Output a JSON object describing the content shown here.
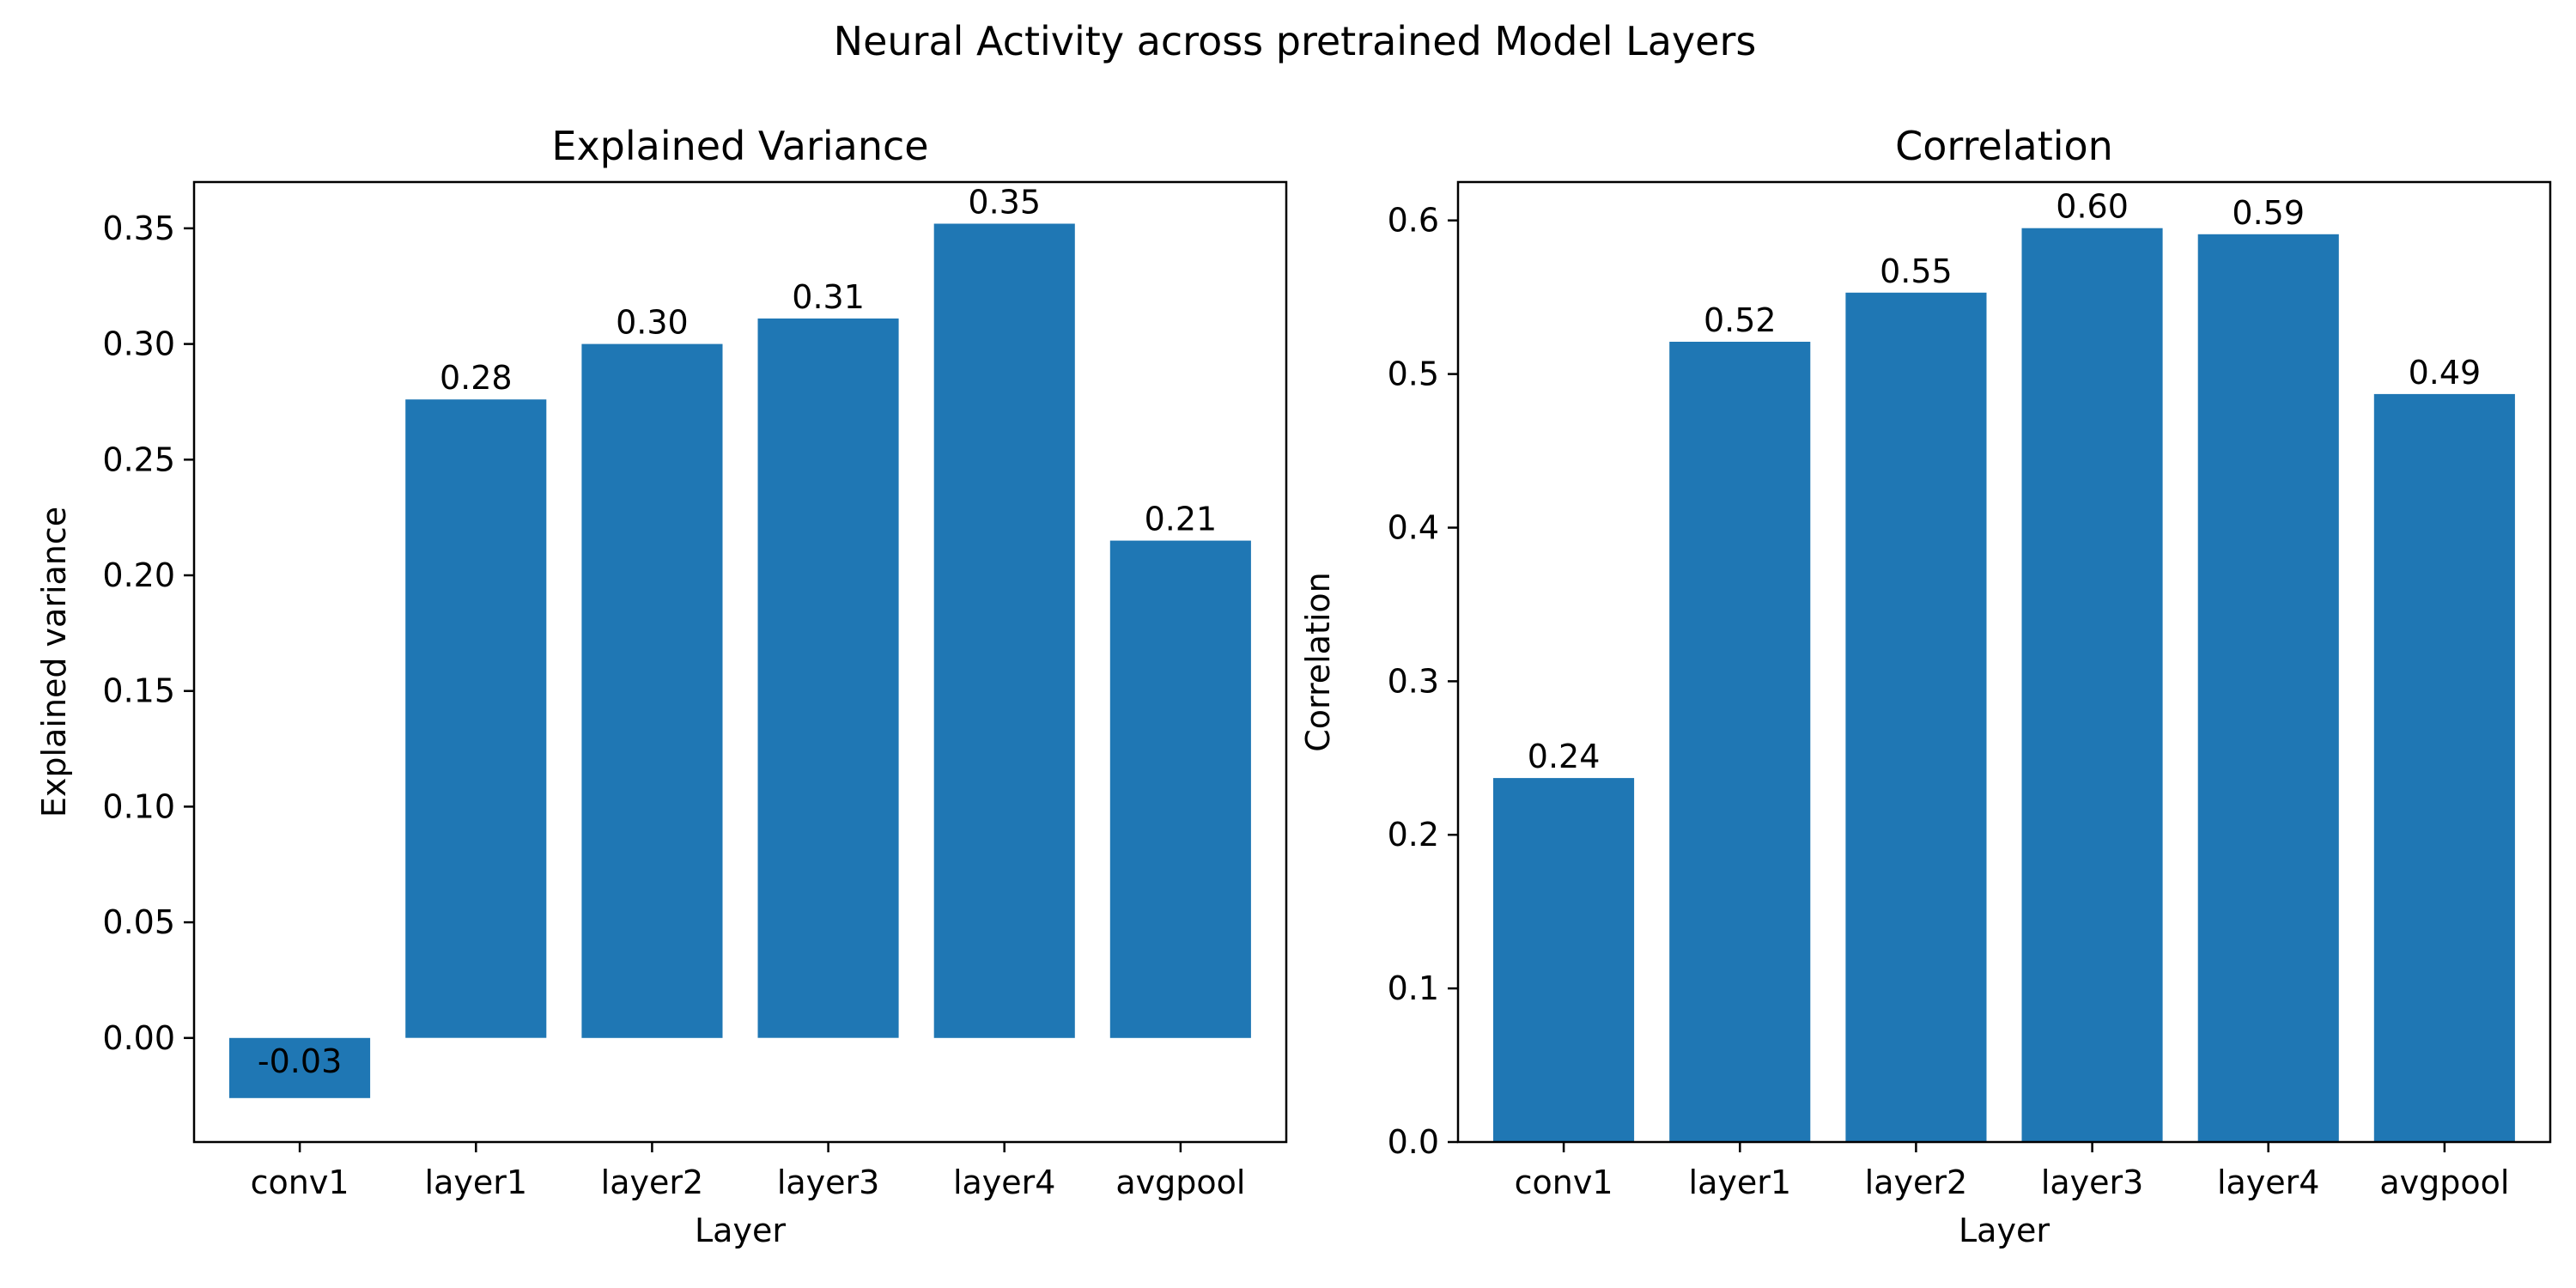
{
  "figure": {
    "title": "Neural Activity across pretrained Model Layers"
  },
  "chart_data": [
    {
      "type": "bar",
      "title": "Explained Variance",
      "xlabel": "Layer",
      "ylabel": "Explained variance",
      "categories": [
        "conv1",
        "layer1",
        "layer2",
        "layer3",
        "layer4",
        "avgpool"
      ],
      "values": [
        -0.026,
        0.276,
        0.3,
        0.311,
        0.352,
        0.215
      ],
      "data_labels": [
        "-0.03",
        "0.28",
        "0.30",
        "0.31",
        "0.35",
        "0.21"
      ],
      "ylim": [
        -0.045,
        0.37
      ],
      "yticks": [
        0.0,
        0.05,
        0.1,
        0.15,
        0.2,
        0.25,
        0.3,
        0.35
      ],
      "ytick_labels": [
        "0.00",
        "0.05",
        "0.10",
        "0.15",
        "0.20",
        "0.25",
        "0.30",
        "0.35"
      ],
      "bar_color": "#1f77b4",
      "grid": false,
      "legend": "none"
    },
    {
      "type": "bar",
      "title": "Correlation",
      "xlabel": "Layer",
      "ylabel": "Correlation",
      "categories": [
        "conv1",
        "layer1",
        "layer2",
        "layer3",
        "layer4",
        "avgpool"
      ],
      "values": [
        0.237,
        0.521,
        0.553,
        0.595,
        0.591,
        0.487
      ],
      "data_labels": [
        "0.24",
        "0.52",
        "0.55",
        "0.60",
        "0.59",
        "0.49"
      ],
      "ylim": [
        0.0,
        0.625
      ],
      "yticks": [
        0.0,
        0.1,
        0.2,
        0.3,
        0.4,
        0.5,
        0.6
      ],
      "ytick_labels": [
        "0.0",
        "0.1",
        "0.2",
        "0.3",
        "0.4",
        "0.5",
        "0.6"
      ],
      "bar_color": "#1f77b4",
      "grid": false,
      "legend": "none"
    }
  ]
}
